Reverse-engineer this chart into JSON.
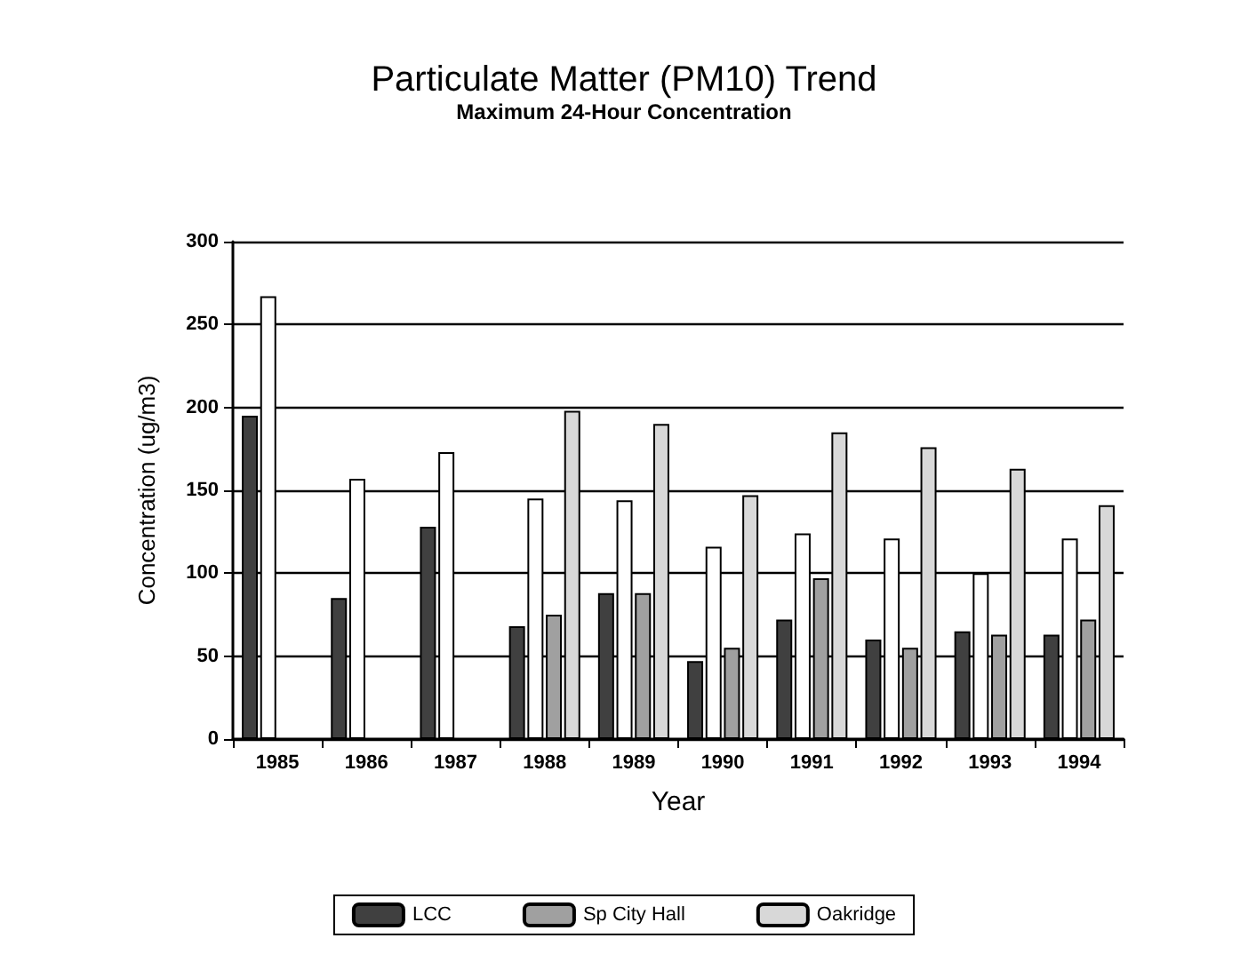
{
  "chart_data": {
    "type": "bar",
    "title": "Particulate Matter (PM10) Trend",
    "subtitle": "Maximum 24-Hour Concentration",
    "xlabel": "Year",
    "ylabel": "Concentration (ug/m3)",
    "categories": [
      "1985",
      "1986",
      "1987",
      "1988",
      "1989",
      "1990",
      "1991",
      "1992",
      "1993",
      "1994"
    ],
    "series": [
      {
        "name": "LCC",
        "color": "#404040",
        "values": [
          195,
          85,
          128,
          68,
          88,
          47,
          72,
          60,
          65,
          63
        ]
      },
      {
        "color": "#ffffff",
        "values": [
          267,
          157,
          173,
          145,
          144,
          116,
          124,
          121,
          100,
          121
        ]
      },
      {
        "name": "Sp City Hall",
        "color": "#a0a0a0",
        "values": [
          null,
          null,
          null,
          75,
          88,
          55,
          97,
          55,
          63,
          72
        ]
      },
      {
        "name": "Oakridge",
        "color": "#d8d8d8",
        "values": [
          null,
          null,
          null,
          198,
          190,
          147,
          185,
          176,
          163,
          141
        ]
      }
    ],
    "ylim": [
      0,
      300
    ],
    "yticks": [
      0,
      50,
      100,
      150,
      200,
      250,
      300
    ],
    "grid": "y",
    "legend": "bottom"
  }
}
